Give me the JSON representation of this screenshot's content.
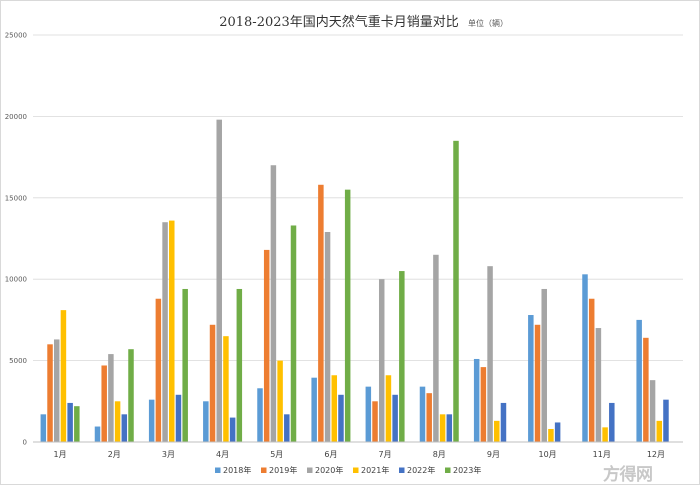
{
  "chart_data": {
    "type": "bar",
    "title": "2018-2023年国内天然气重卡月销量对比",
    "unit_note": "单位（辆）",
    "categories": [
      "1月",
      "2月",
      "3月",
      "4月",
      "5月",
      "6月",
      "7月",
      "8月",
      "9月",
      "10月",
      "11月",
      "12月"
    ],
    "ylim": [
      0,
      25000
    ],
    "yticks": [
      0,
      5000,
      10000,
      15000,
      20000,
      25000
    ],
    "grid": true,
    "legend_position": "bottom",
    "series": [
      {
        "name": "2018年",
        "color": "#5B9BD5",
        "values": [
          1700,
          950,
          2600,
          2500,
          3300,
          3950,
          3400,
          3400,
          5100,
          7800,
          10300,
          7500
        ]
      },
      {
        "name": "2019年",
        "color": "#ED7D31",
        "values": [
          6000,
          4700,
          8800,
          7200,
          11800,
          15800,
          2500,
          3000,
          4600,
          7200,
          8800,
          6400
        ]
      },
      {
        "name": "2020年",
        "color": "#A5A5A5",
        "values": [
          6300,
          5400,
          13500,
          19800,
          17000,
          12900,
          10000,
          11500,
          10800,
          9400,
          7000,
          3800
        ]
      },
      {
        "name": "2021年",
        "color": "#FFC000",
        "values": [
          8100,
          2500,
          13600,
          6500,
          5000,
          4100,
          4100,
          1700,
          1300,
          800,
          900,
          1300
        ]
      },
      {
        "name": "2022年",
        "color": "#4472C4",
        "values": [
          2400,
          1700,
          2900,
          1500,
          1700,
          2900,
          2900,
          1700,
          2400,
          1200,
          2400,
          2600
        ]
      },
      {
        "name": "2023年",
        "color": "#70AD47",
        "values": [
          2200,
          5700,
          9400,
          9400,
          13300,
          15500,
          10500,
          18500,
          null,
          null,
          null,
          null
        ]
      }
    ]
  },
  "watermark": "方得网"
}
